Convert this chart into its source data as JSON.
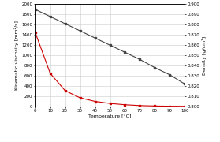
{
  "temperature": [
    0,
    10,
    20,
    30,
    40,
    50,
    60,
    70,
    80,
    90,
    100
  ],
  "kinematic_viscosity": [
    1450,
    650,
    310,
    170,
    100,
    60,
    35,
    18,
    10,
    6,
    4
  ],
  "density": [
    0.895,
    0.888,
    0.881,
    0.874,
    0.867,
    0.86,
    0.853,
    0.846,
    0.838,
    0.831,
    0.822
  ],
  "viscosity_color": "#cc0000",
  "density_color": "#444444",
  "grid_color": "#cccccc",
  "xlabel": "Temperature [°C]",
  "ylabel_left": "Kinematic viscosity [mm²/s]",
  "ylabel_right": "Density [g/cm³]",
  "legend_viscosity": "kinematic viscosity [mm²/s]",
  "legend_density": "density [g/cm³]",
  "xlim": [
    0,
    100
  ],
  "ylim_left": [
    0,
    2000
  ],
  "ylim_right": [
    0.8,
    0.9
  ],
  "xticks": [
    0,
    10,
    20,
    30,
    40,
    50,
    60,
    70,
    80,
    90,
    100
  ],
  "yticks_left": [
    0,
    200,
    400,
    600,
    800,
    1000,
    1200,
    1400,
    1600,
    1800,
    2000
  ],
  "yticks_right": [
    0.8,
    0.81,
    0.82,
    0.83,
    0.84,
    0.85,
    0.86,
    0.87,
    0.88,
    0.89,
    0.9
  ],
  "marker": "s",
  "markersize": 2.0,
  "linewidth": 0.8,
  "label_fontsize": 4.5,
  "tick_fontsize": 4.0,
  "legend_fontsize": 3.5
}
